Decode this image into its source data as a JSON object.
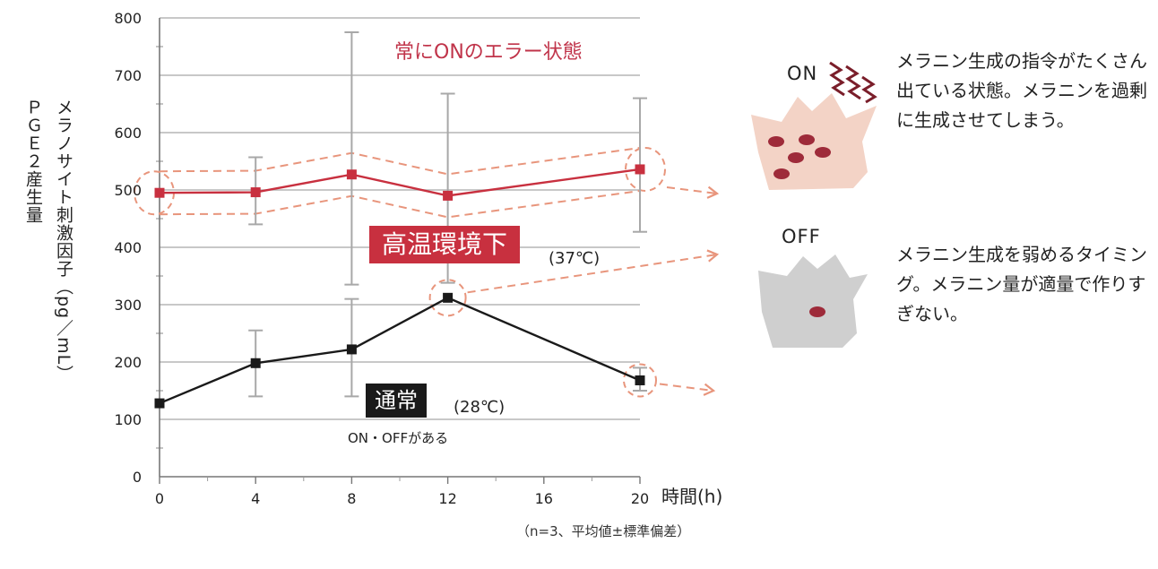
{
  "chart_data": {
    "type": "line",
    "x": [
      0,
      4,
      8,
      12,
      16,
      20
    ],
    "xlabel": "時間(h)",
    "ylabel": [
      "ＰＧＥ２産生量",
      "メラノサイト刺激因子（pg／mL）"
    ],
    "ylim": [
      0,
      800
    ],
    "yticks": [
      0,
      100,
      200,
      300,
      400,
      500,
      600,
      700,
      800
    ],
    "xticks": [
      0,
      4,
      8,
      12,
      16,
      20
    ],
    "grid": true,
    "series": [
      {
        "name": "高温環境下",
        "color": "#c8303f",
        "x": [
          0,
          4,
          8,
          12,
          20
        ],
        "values": [
          495,
          496,
          527,
          490,
          536
        ],
        "error": [
          [
            495,
            495
          ],
          [
            440,
            557
          ],
          [
            335,
            775
          ],
          [
            338,
            668
          ],
          [
            427,
            660
          ]
        ]
      },
      {
        "name": "通常",
        "color": "#1a1a1a",
        "x": [
          0,
          4,
          8,
          12,
          20
        ],
        "values": [
          128,
          198,
          222,
          312,
          168
        ],
        "error": [
          [
            128,
            128
          ],
          [
            140,
            255
          ],
          [
            140,
            310
          ],
          [
            312,
            312
          ],
          [
            150,
            190
          ]
        ]
      }
    ]
  },
  "annotations": {
    "high_title": "常にONのエラー状態",
    "high_tag": "高温環境下",
    "high_temp": "(37℃)",
    "normal_tag": "通常",
    "normal_temp": "(28℃)",
    "normal_note": "ON・OFFがある",
    "footnote": "（n=3、平均値±標準偏差）"
  },
  "side_panel": {
    "on_label": "ON",
    "on_text": "メラニン生成の指令がたくさん出ている状態。メラニンを過剰に生成させてしまう。",
    "off_label": "OFF",
    "off_text": "メラニン生成を弱めるタイミング。メラニン量が適量で作りすぎない。",
    "on_cell_color": "#f3d3c6",
    "off_cell_color": "#cfcfcf",
    "granule_color": "#9e2b3a",
    "dash_color": "#e8957c"
  }
}
